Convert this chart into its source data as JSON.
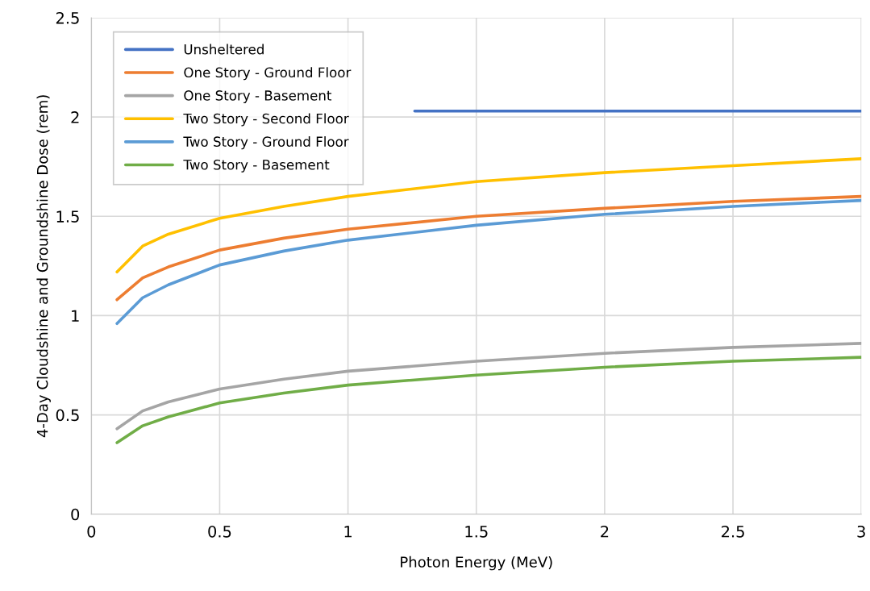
{
  "chart_data": {
    "type": "line",
    "xlabel": "Photon Energy (MeV)",
    "ylabel": "4-Day Cloudshine and Groundshine Dose (rem)",
    "x": [
      0.1,
      0.2,
      0.3,
      0.5,
      0.75,
      1,
      1.5,
      2,
      2.5,
      3
    ],
    "series": [
      {
        "name": "Unsheltered",
        "color": "#4472c4",
        "x": [
          1.26,
          3
        ],
        "values": [
          2.03,
          2.03
        ]
      },
      {
        "name": "One Story - Ground Floor",
        "color": "#ed7d31",
        "values": [
          1.08,
          1.19,
          1.245,
          1.33,
          1.39,
          1.435,
          1.5,
          1.54,
          1.575,
          1.6
        ]
      },
      {
        "name": "One Story - Basement",
        "color": "#a5a5a5",
        "values": [
          0.43,
          0.52,
          0.565,
          0.63,
          0.68,
          0.72,
          0.77,
          0.81,
          0.84,
          0.86
        ]
      },
      {
        "name": "Two Story - Second Floor",
        "color": "#ffc000",
        "values": [
          1.22,
          1.35,
          1.41,
          1.49,
          1.55,
          1.6,
          1.675,
          1.72,
          1.755,
          1.79
        ]
      },
      {
        "name": "Two Story - Ground Floor",
        "color": "#5b9bd5",
        "values": [
          0.96,
          1.09,
          1.155,
          1.255,
          1.325,
          1.38,
          1.455,
          1.51,
          1.55,
          1.58
        ]
      },
      {
        "name": "Two Story - Basement",
        "color": "#70ad47",
        "values": [
          0.36,
          0.445,
          0.49,
          0.56,
          0.61,
          0.65,
          0.7,
          0.74,
          0.77,
          0.79
        ]
      }
    ],
    "xlim": [
      0,
      3
    ],
    "xticks": [
      0,
      0.5,
      1,
      1.5,
      2,
      2.5,
      3
    ],
    "ylim": [
      0,
      2.5
    ],
    "yticks": [
      0,
      0.5,
      1,
      1.5,
      2,
      2.5
    ],
    "grid": true,
    "legend": "top left",
    "marker": "none",
    "line_style": "solid"
  }
}
